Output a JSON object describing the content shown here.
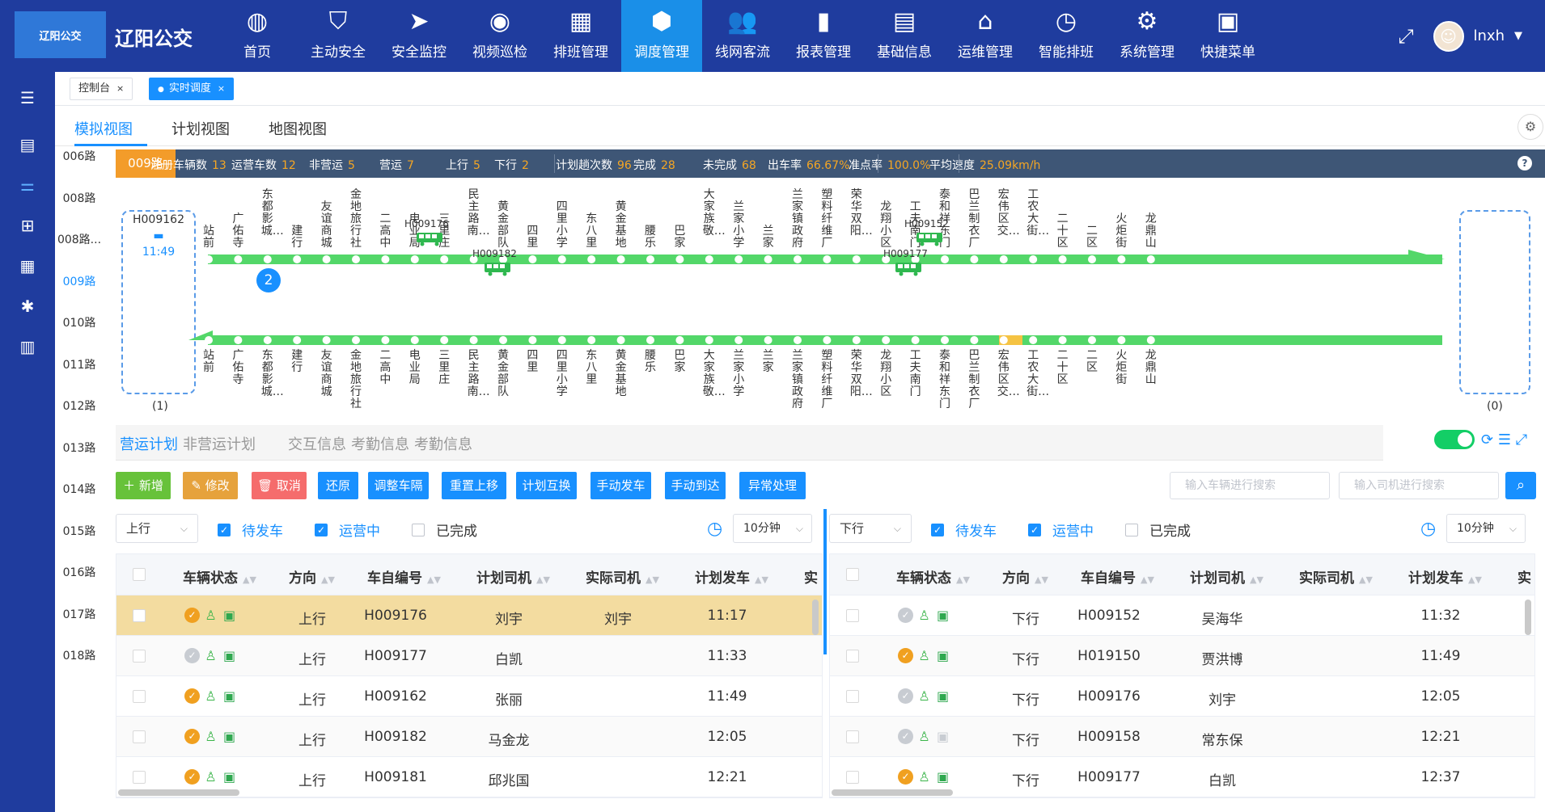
{
  "app": {
    "title": "辽阳公交",
    "logo_text": "辽阳公交"
  },
  "menu": [
    {
      "label": "首页",
      "icon": "globe-icon",
      "glyph": "◍"
    },
    {
      "label": "主动安全",
      "icon": "shield-check-icon",
      "glyph": "⛉"
    },
    {
      "label": "安全监控",
      "icon": "paper-plane-icon",
      "glyph": "➤"
    },
    {
      "label": "视频巡检",
      "icon": "eye-icon",
      "glyph": "◉"
    },
    {
      "label": "排班管理",
      "icon": "calendar-icon",
      "glyph": "▦"
    },
    {
      "label": "调度管理",
      "icon": "cube-icon",
      "glyph": "⬢",
      "active": true
    },
    {
      "label": "线网客流",
      "icon": "users-icon",
      "glyph": "👥"
    },
    {
      "label": "报表管理",
      "icon": "bar-chart-icon",
      "glyph": "▮"
    },
    {
      "label": "基础信息",
      "icon": "document-icon",
      "glyph": "▤"
    },
    {
      "label": "运维管理",
      "icon": "monitor-chart-icon",
      "glyph": "⌂"
    },
    {
      "label": "智能排班",
      "icon": "clock-history-icon",
      "glyph": "◷"
    },
    {
      "label": "系统管理",
      "icon": "gear-icon",
      "glyph": "⚙"
    },
    {
      "label": "快捷菜单",
      "icon": "grid-icon",
      "glyph": "▣"
    }
  ],
  "user": {
    "name": "lnxh"
  },
  "tabs": [
    {
      "label": "控制台"
    },
    {
      "label": "实时调度"
    }
  ],
  "views": [
    "模拟视图",
    "计划视图",
    "地图视图"
  ],
  "routes": [
    "006路",
    "008路",
    "008路...",
    "009路",
    "010路",
    "011路",
    "012路",
    "013路",
    "014路",
    "015路",
    "016路",
    "017路",
    "018路"
  ],
  "stats": {
    "route": "009路",
    "items": [
      {
        "label": "注册车辆数",
        "value": "13"
      },
      {
        "label": "运营车数",
        "value": "12"
      },
      {
        "label": "非营运",
        "value": "5"
      },
      {
        "label": "营运",
        "value": "7"
      },
      {
        "label": "上行",
        "value": "5"
      },
      {
        "label": "下行",
        "value": "2"
      },
      {
        "label": "计划趟次数",
        "value": "96"
      },
      {
        "label": "完成",
        "value": "28"
      },
      {
        "label": "未完成",
        "value": "68"
      },
      {
        "label": "出车率",
        "value": "66.67%"
      },
      {
        "label": "准点率",
        "value": "100.0%"
      },
      {
        "label": "平均速度",
        "value": "25.09km/h"
      }
    ]
  },
  "simulation": {
    "left_terminal": {
      "vehicle": "H009162",
      "time": "11:49",
      "count": "(1)"
    },
    "right_terminal": {
      "count": "(0)"
    },
    "stops_up": [
      "站前",
      "广佑寺",
      "东都影城…",
      "建行",
      "友谊商城",
      "金地旅行社",
      "二高中",
      "电业局",
      "三里庄",
      "民主路南…",
      "黄金部队",
      "四里",
      "四里小学",
      "东八里",
      "黄金基地",
      "腰乐",
      "巴家",
      "大家族敬…",
      "兰家小学",
      "兰家",
      "兰家镇政府",
      "塑料纤维厂",
      "荣华双阳…",
      "龙翔小区",
      "工夫南门",
      "泰和祥东门",
      "巴兰制衣厂",
      "宏伟区交…",
      "工农大街…",
      "二十区",
      "二区",
      "火炬街",
      "龙鼎山"
    ],
    "stops_down": [
      "站前",
      "广佑寺",
      "东都影城…",
      "建行",
      "友谊商城",
      "金地旅行社",
      "二高中",
      "电业局",
      "三里庄",
      "民主路南…",
      "黄金部队",
      "四里",
      "四里小学",
      "东八里",
      "黄金基地",
      "腰乐",
      "巴家",
      "大家族敬…",
      "兰家小学",
      "兰家",
      "兰家镇政府",
      "塑料纤维厂",
      "荣华双阳…",
      "龙翔小区",
      "工夫南门",
      "泰和祥东门",
      "巴兰制衣厂",
      "宏伟区交…",
      "工农大街…",
      "二十区",
      "二区",
      "火炬街",
      "龙鼎山"
    ],
    "cluster_count": "2",
    "vehicles_up": [
      "H009176",
      "H009152"
    ],
    "vehicles_down": [
      "H009182",
      "H009177"
    ]
  },
  "panel_tabs": [
    "营运计划",
    "非营运计划",
    "交互信息",
    "考勤信息",
    "考勤信息"
  ],
  "buttons": [
    {
      "label": "＋ 新增"
    },
    {
      "label": "✎ 修改"
    },
    {
      "label": "🗑 取消"
    },
    {
      "label": "还原"
    },
    {
      "label": "调整车隔"
    },
    {
      "label": "重置上移"
    },
    {
      "label": "计划互换"
    },
    {
      "label": "手动发车"
    },
    {
      "label": "手动到达"
    },
    {
      "label": "异常处理"
    }
  ],
  "search": {
    "vehicle_placeholder": "输入车辆进行搜索",
    "driver_placeholder": "输入司机进行搜索"
  },
  "left_filter": {
    "direction": "上行",
    "waiting": "待发车",
    "running": "运营中",
    "done": "已完成",
    "interval": "10分钟"
  },
  "right_filter": {
    "direction": "下行",
    "waiting": "待发车",
    "running": "运营中",
    "done": "已完成",
    "interval": "10分钟"
  },
  "columns": [
    "车辆状态",
    "方向",
    "车自编号",
    "计划司机",
    "实际司机",
    "计划发车",
    "实"
  ],
  "left_rows": [
    {
      "dir": "上行",
      "vid": "H009176",
      "plan": "刘宇",
      "actual": "刘宇",
      "time": "11:17",
      "s": "or",
      "b": "on"
    },
    {
      "dir": "上行",
      "vid": "H009177",
      "plan": "白凯",
      "actual": "",
      "time": "11:33",
      "s": "gr",
      "b": "on"
    },
    {
      "dir": "上行",
      "vid": "H009162",
      "plan": "张丽",
      "actual": "",
      "time": "11:49",
      "s": "or",
      "b": "on"
    },
    {
      "dir": "上行",
      "vid": "H009182",
      "plan": "马金龙",
      "actual": "",
      "time": "12:05",
      "s": "or",
      "b": "on"
    },
    {
      "dir": "上行",
      "vid": "H009181",
      "plan": "邱兆国",
      "actual": "",
      "time": "12:21",
      "s": "or",
      "b": "on"
    }
  ],
  "right_rows": [
    {
      "dir": "下行",
      "vid": "H009152",
      "plan": "吴海华",
      "actual": "",
      "time": "11:32",
      "s": "gr",
      "b": "on"
    },
    {
      "dir": "下行",
      "vid": "H019150",
      "plan": "贾洪博",
      "actual": "",
      "time": "11:49",
      "s": "or",
      "b": "on"
    },
    {
      "dir": "下行",
      "vid": "H009176",
      "plan": "刘宇",
      "actual": "",
      "time": "12:05",
      "s": "gr",
      "b": "on"
    },
    {
      "dir": "下行",
      "vid": "H009158",
      "plan": "常东保",
      "actual": "",
      "time": "12:21",
      "s": "gr",
      "b": "off"
    },
    {
      "dir": "下行",
      "vid": "H009177",
      "plan": "白凯",
      "actual": "",
      "time": "12:37",
      "s": "or",
      "b": "on"
    }
  ],
  "colors": {
    "nav": "#1f3c9e",
    "accent": "#1890ff",
    "line": "#53d769",
    "orange": "#f39c2a"
  }
}
